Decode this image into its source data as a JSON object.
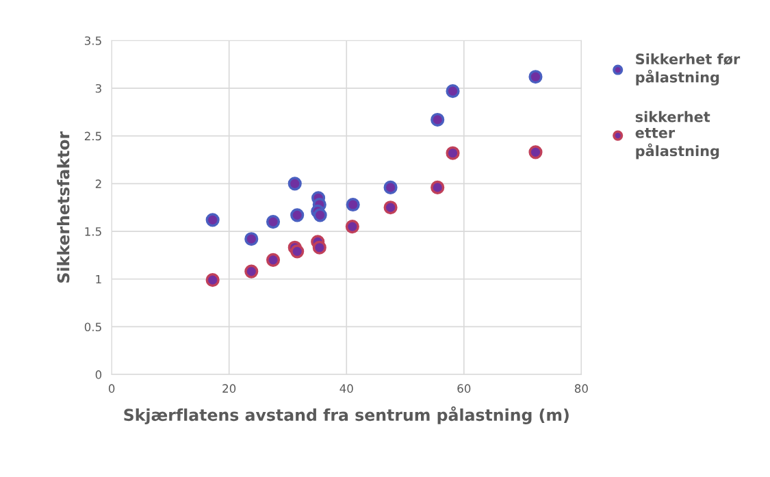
{
  "chart_data": {
    "type": "scatter",
    "xlabel": "Skjærflatens avstand fra sentrum pålastning (m)",
    "ylabel": "Sikkerhetsfaktor",
    "series": [
      {
        "name": "Sikkerhet før\npålastning",
        "color": "#4a5fc0",
        "x": [
          17.2,
          23.8,
          27.5,
          31.2,
          31.6,
          35.2,
          35.4,
          35.1,
          35.5,
          41.1,
          47.5,
          55.5,
          58.1,
          72.2
        ],
        "values": [
          1.62,
          1.42,
          1.6,
          2.0,
          1.67,
          1.85,
          1.78,
          1.71,
          1.67,
          1.78,
          1.96,
          2.67,
          2.97,
          3.12
        ]
      },
      {
        "name": "sikkerhet\netter\npålastning",
        "color": "#c0405a",
        "x": [
          17.2,
          23.8,
          27.5,
          31.2,
          31.6,
          35.1,
          35.4,
          41.0,
          47.5,
          55.5,
          58.1,
          72.2
        ],
        "values": [
          0.99,
          1.08,
          1.2,
          1.33,
          1.29,
          1.39,
          1.33,
          1.55,
          1.75,
          1.96,
          2.32,
          2.33
        ]
      }
    ],
    "xlim": [
      0,
      80
    ],
    "xticks": [
      0,
      20,
      40,
      60,
      80
    ],
    "ylim": [
      0,
      3.5
    ],
    "yticks": [
      0,
      0.5,
      1,
      1.5,
      2,
      2.5,
      3,
      3.5
    ],
    "grid": true,
    "legend": "right",
    "marker": "circle"
  }
}
